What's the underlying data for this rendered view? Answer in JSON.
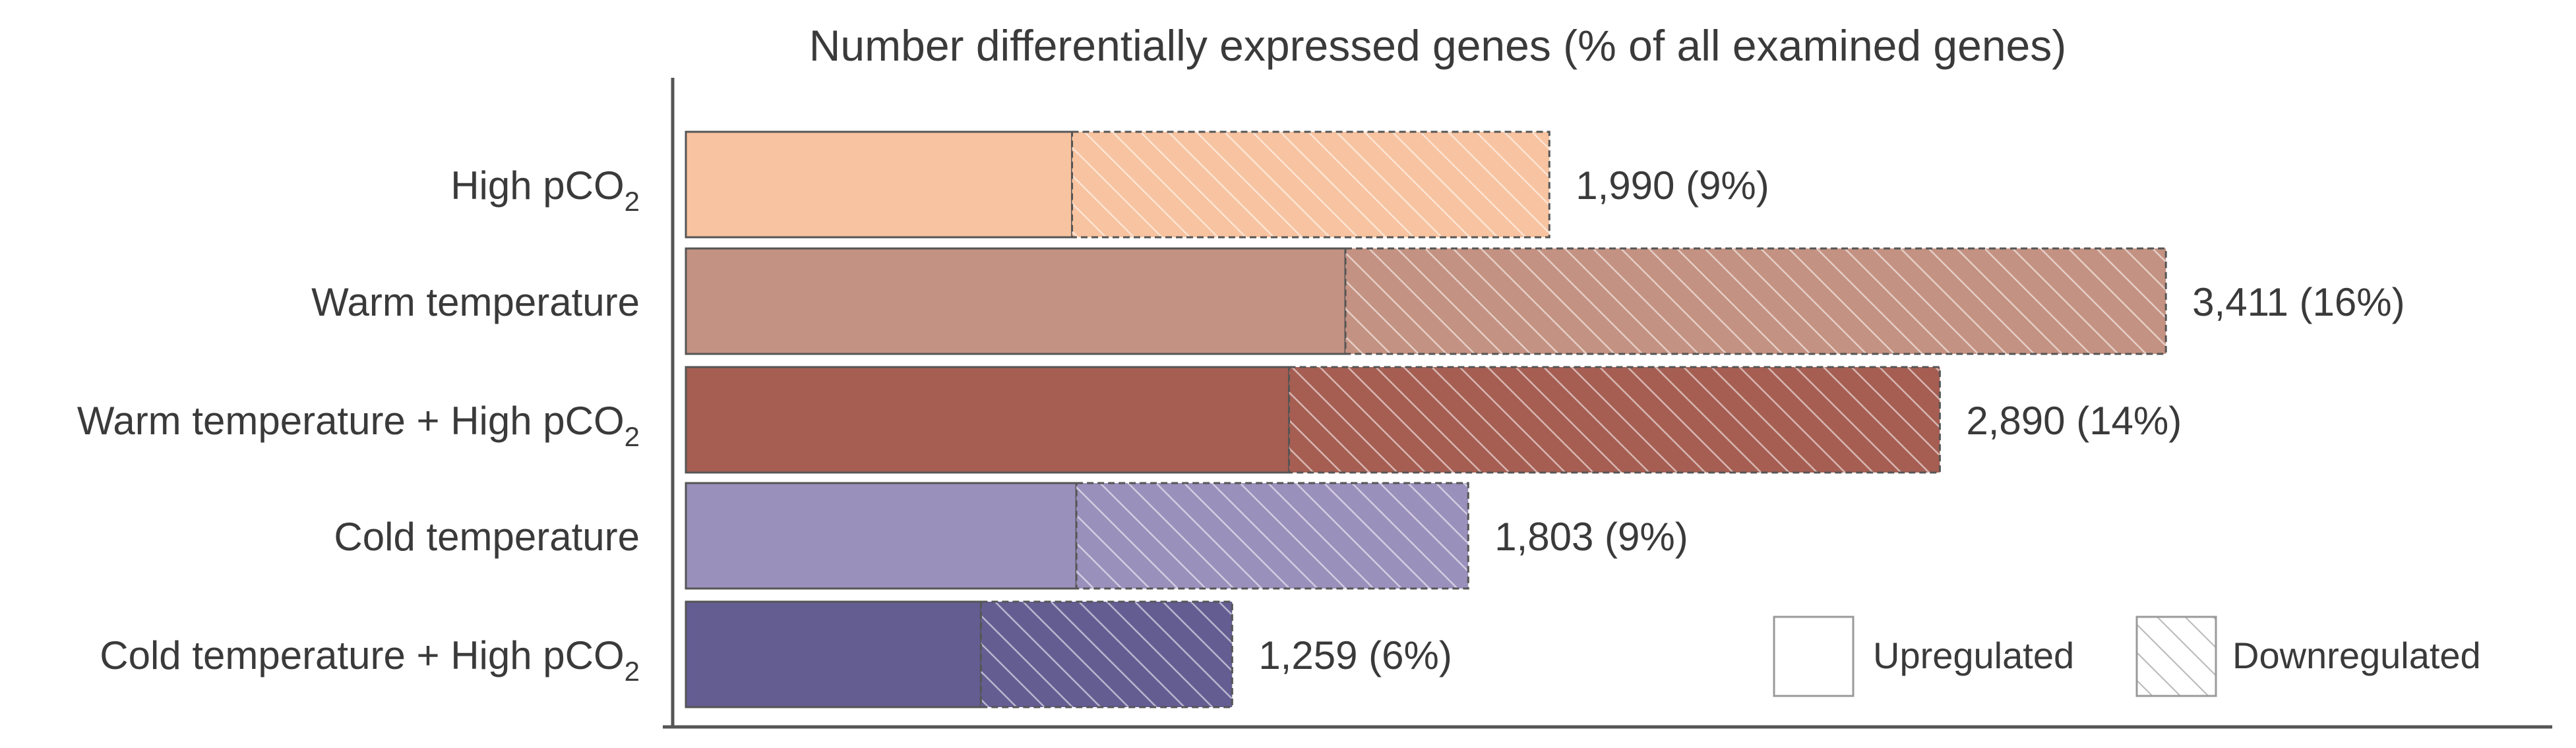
{
  "chart_data": {
    "type": "bar",
    "orientation": "horizontal",
    "stacked": true,
    "title": "Number differentially expressed genes (% of all examined genes)",
    "xlabel": "",
    "ylabel": "",
    "xlim": [
      0,
      3600
    ],
    "grid": false,
    "legend_position": "bottom-right",
    "categories": [
      {
        "text": "High pCO",
        "sub": "2"
      },
      {
        "text": "Warm temperature",
        "sub": ""
      },
      {
        "text": "Warm temperature + High pCO",
        "sub": "2"
      },
      {
        "text": "Cold temperature",
        "sub": ""
      },
      {
        "text": "Cold temperature + High pCO",
        "sub": "2"
      }
    ],
    "series": [
      {
        "name": "Upregulated",
        "pattern": "solid",
        "values": [
          890,
          1520,
          1390,
          900,
          680
        ]
      },
      {
        "name": "Downregulated",
        "pattern": "hatched",
        "values": [
          1100,
          1891,
          1500,
          903,
          579
        ]
      }
    ],
    "totals": [
      1990,
      3411,
      2890,
      1803,
      1259
    ],
    "data_labels": [
      "1,990 (9%)",
      "3,411 (16%)",
      "2,890 (14%)",
      "1,803 (9%)",
      "1,259 (6%)"
    ],
    "colors": [
      "#f8c3a0",
      "#c49282",
      "#a65e52",
      "#9a90bc",
      "#645d92"
    ],
    "hatch_color": "#ffffff",
    "outline_color": "#555555"
  }
}
